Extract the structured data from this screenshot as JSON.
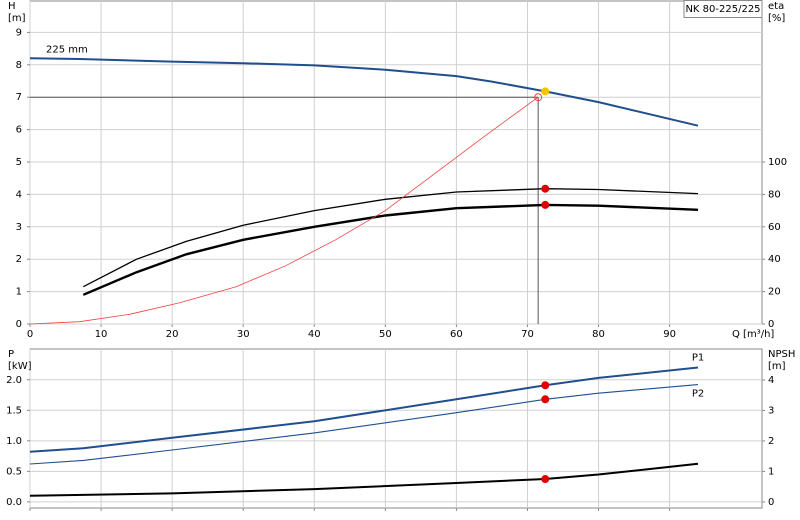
{
  "chart_data": [
    {
      "type": "line",
      "title": "NK 80-225/225",
      "ylabel": [
        "H",
        "[m]"
      ],
      "y2label": [
        "eta",
        "[%]"
      ],
      "xlabel": "Q [m³/h]",
      "xlim": [
        0,
        103
      ],
      "xticks": [
        0,
        10,
        20,
        30,
        40,
        50,
        60,
        70,
        80,
        90
      ],
      "ylim": [
        0,
        10
      ],
      "yticks": [
        0,
        1,
        2,
        3,
        4,
        5,
        6,
        7,
        8,
        9
      ],
      "y2lim": [
        0,
        200
      ],
      "y2ticks": [
        0,
        20,
        40,
        60,
        80,
        100
      ],
      "grid": true,
      "series": [
        {
          "name": "225 mm",
          "color": "#1f4f8f",
          "line_width": 2,
          "label_pos": "start-above",
          "x": [
            0,
            7,
            20,
            30,
            40,
            50,
            60,
            65,
            72.5,
            80,
            94
          ],
          "values": [
            8.2,
            8.18,
            8.1,
            8.05,
            7.98,
            7.85,
            7.65,
            7.48,
            7.18,
            6.85,
            6.12
          ]
        },
        {
          "color": "#000000",
          "line_width": 1.3,
          "axis": "y2",
          "x": [
            7.5,
            15,
            22,
            30,
            40,
            50,
            60,
            72.5,
            80,
            94
          ],
          "values": [
            23,
            40,
            51,
            61,
            70,
            77,
            81.5,
            83.5,
            83,
            80.5
          ]
        },
        {
          "color": "#000000",
          "line_width": 2.4,
          "axis": "y2",
          "x": [
            7.5,
            15,
            22,
            30,
            40,
            50,
            60,
            72.5,
            80,
            94
          ],
          "values": [
            18,
            32,
            43,
            52,
            60,
            67,
            71.5,
            73.5,
            73,
            70.5
          ]
        },
        {
          "color": "#f04040",
          "line_width": 0.8,
          "x": [
            0,
            7,
            14,
            21,
            29,
            36,
            43,
            50,
            57,
            64,
            71.5
          ],
          "values": [
            0,
            0.07,
            0.3,
            0.65,
            1.15,
            1.8,
            2.6,
            3.5,
            4.65,
            5.8,
            7.0
          ]
        }
      ],
      "operating_point": {
        "x": 71.5,
        "y": 7.0
      },
      "markers": [
        {
          "x": 71.5,
          "y": 7.0,
          "color": "#f04040",
          "fill": "none"
        },
        {
          "x": 72.5,
          "y": 7.18,
          "color": "#f5c400",
          "fill": "#f5c400"
        },
        {
          "x": 72.5,
          "y": 83.5,
          "axis": "y2",
          "color": "#e00000",
          "fill": "#e00000"
        },
        {
          "x": 72.5,
          "y": 73.5,
          "axis": "y2",
          "color": "#e00000",
          "fill": "#e00000"
        }
      ]
    },
    {
      "type": "line",
      "ylabel": [
        "P",
        "[kW]"
      ],
      "y2label": [
        "NPSH",
        "[m]"
      ],
      "xlim": [
        0,
        103
      ],
      "xticks": [
        0,
        10,
        20,
        30,
        40,
        50,
        60,
        70,
        80,
        90
      ],
      "ylim": [
        -0.1,
        2.52
      ],
      "yticks": [
        {
          "value": 0,
          "label": "0.0"
        },
        0.5,
        {
          "value": 1,
          "label": "1.0"
        },
        1.5,
        {
          "value": 2,
          "label": "2.0"
        }
      ],
      "y2lim": [
        -0.2,
        5.05
      ],
      "y2ticks": [
        0,
        1,
        2,
        3,
        4
      ],
      "grid": true,
      "series": [
        {
          "name": "P1",
          "color": "#1f4f8f",
          "line_width": 2,
          "label_pos": "end-above",
          "x": [
            0,
            7.5,
            20,
            40,
            60,
            72.5,
            80,
            94
          ],
          "values": [
            0.82,
            0.88,
            1.05,
            1.32,
            1.68,
            1.91,
            2.03,
            2.2
          ]
        },
        {
          "name": "P2",
          "color": "#1f4f8f",
          "line_width": 1.1,
          "label_pos": "end-below",
          "x": [
            0,
            7.5,
            20,
            40,
            60,
            72.5,
            80,
            94
          ],
          "values": [
            0.62,
            0.68,
            0.85,
            1.13,
            1.46,
            1.68,
            1.78,
            1.92
          ]
        },
        {
          "color": "#000000",
          "line_width": 2,
          "axis": "y2",
          "x": [
            0,
            7.5,
            20,
            40,
            60,
            72.5,
            80,
            94
          ],
          "values": [
            0.2,
            0.23,
            0.28,
            0.42,
            0.62,
            0.75,
            0.9,
            1.25
          ]
        }
      ],
      "markers": [
        {
          "x": 72.5,
          "y": 1.91,
          "color": "#e00000",
          "fill": "#e00000"
        },
        {
          "x": 72.5,
          "y": 1.68,
          "color": "#e00000",
          "fill": "#e00000"
        },
        {
          "x": 72.5,
          "y": 0.75,
          "axis": "y2",
          "color": "#e00000",
          "fill": "#e00000"
        }
      ]
    }
  ]
}
